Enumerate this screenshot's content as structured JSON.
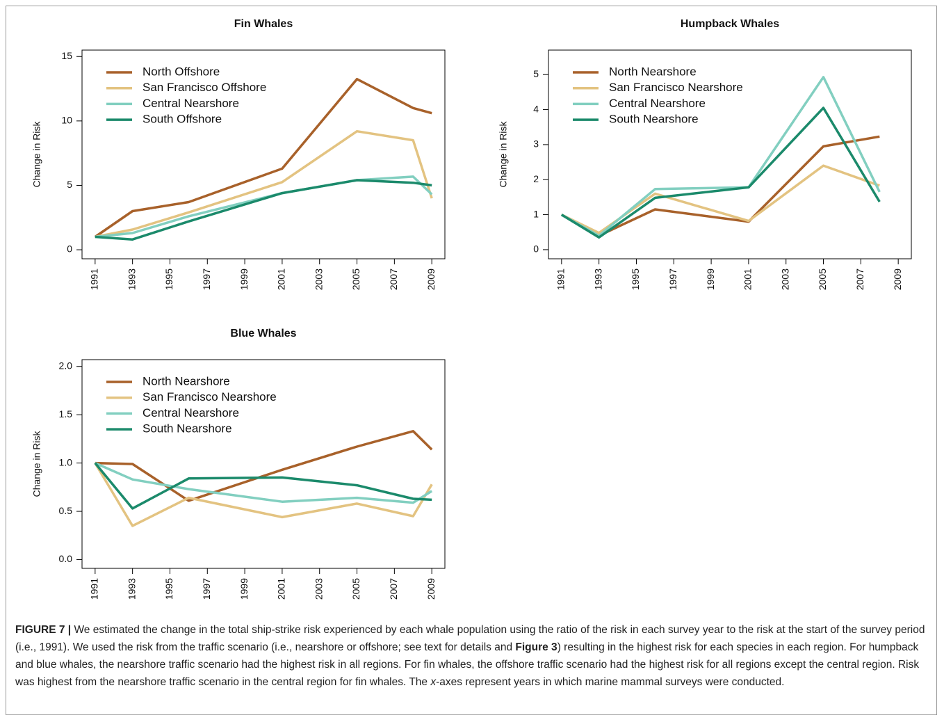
{
  "chart_data": [
    {
      "type": "line",
      "title": "Fin Whales",
      "y_label": "Change in Risk",
      "x": [
        1991,
        1993,
        1996,
        2001,
        2005,
        2008,
        2009
      ],
      "xlim": [
        1990.3,
        2009.7
      ],
      "xticks": [
        1991,
        1993,
        1995,
        1997,
        1999,
        2001,
        2003,
        2005,
        2007,
        2009
      ],
      "ylim": [
        -0.7,
        15.5
      ],
      "yticks": [
        0,
        5,
        10,
        15
      ],
      "legend": "upper left",
      "series": [
        {
          "name": "North Offshore",
          "color": "#a8612a",
          "values": [
            1,
            3.0,
            3.7,
            6.3,
            13.25,
            11.0,
            10.6
          ]
        },
        {
          "name": "San Francisco Offshore",
          "color": "#e3c381",
          "values": [
            1,
            1.57,
            2.9,
            5.25,
            9.2,
            8.5,
            4.0
          ]
        },
        {
          "name": "Central Nearshore",
          "color": "#82cfc0",
          "values": [
            1,
            1.3,
            2.6,
            4.4,
            5.4,
            5.68,
            4.3
          ]
        },
        {
          "name": "South Offshore",
          "color": "#1b8a6b",
          "values": [
            1,
            0.8,
            2.2,
            4.4,
            5.4,
            5.2,
            5.0
          ]
        }
      ]
    },
    {
      "type": "line",
      "title": "Humpback Whales",
      "y_label": "Change in Risk",
      "x": [
        1991,
        1993,
        1996,
        2001,
        2005,
        2008
      ],
      "xlim": [
        1990.3,
        2009.7
      ],
      "xticks": [
        1991,
        1993,
        1995,
        1997,
        1999,
        2001,
        2003,
        2005,
        2007,
        2009
      ],
      "ylim": [
        -0.26,
        5.7
      ],
      "yticks": [
        0,
        1,
        2,
        3,
        4,
        5
      ],
      "legend": "upper left",
      "series": [
        {
          "name": "North Nearshore",
          "color": "#a8612a",
          "values": [
            1,
            0.4,
            1.15,
            0.8,
            2.95,
            3.23
          ]
        },
        {
          "name": "San Francisco Nearshore",
          "color": "#e3c381",
          "values": [
            1,
            0.48,
            1.6,
            0.82,
            2.4,
            1.83
          ]
        },
        {
          "name": "Central Nearshore",
          "color": "#82cfc0",
          "values": [
            1,
            0.4,
            1.73,
            1.78,
            4.93,
            1.65
          ]
        },
        {
          "name": "South Nearshore",
          "color": "#1b8a6b",
          "values": [
            1,
            0.35,
            1.48,
            1.78,
            4.05,
            1.37
          ]
        }
      ]
    },
    {
      "type": "line",
      "title": "Blue Whales",
      "y_label": "Change in Risk",
      "x": [
        1991,
        1993,
        1996,
        2001,
        2005,
        2008,
        2009
      ],
      "xlim": [
        1990.3,
        2009.7
      ],
      "xticks": [
        1991,
        1993,
        1995,
        1997,
        1999,
        2001,
        2003,
        2005,
        2007,
        2009
      ],
      "ylim": [
        -0.09,
        2.07
      ],
      "yticks": [
        {
          "value": 0,
          "label": "0.0"
        },
        {
          "value": 0.5,
          "label": "0.5"
        },
        {
          "value": 1,
          "label": "1.0"
        },
        {
          "value": 1.5,
          "label": "1.5"
        },
        {
          "value": 2,
          "label": "2.0"
        }
      ],
      "legend": "upper left",
      "series": [
        {
          "name": "North Nearshore",
          "color": "#a8612a",
          "values": [
            1,
            0.99,
            0.61,
            0.93,
            1.17,
            1.33,
            1.14
          ]
        },
        {
          "name": "San Francisco Nearshore",
          "color": "#e3c381",
          "values": [
            1,
            0.35,
            0.64,
            0.44,
            0.58,
            0.45,
            0.78
          ]
        },
        {
          "name": "Central Nearshore",
          "color": "#82cfc0",
          "values": [
            1,
            0.83,
            0.73,
            0.6,
            0.64,
            0.59,
            0.71
          ]
        },
        {
          "name": "South Nearshore",
          "color": "#1b8a6b",
          "values": [
            1,
            0.53,
            0.84,
            0.85,
            0.77,
            0.63,
            0.62
          ]
        }
      ]
    }
  ],
  "caption": {
    "label": "FIGURE 7 |",
    "text_1": " We estimated the change in the total ship-strike risk experienced by each whale population using the ratio of the risk in each survey year to the risk at the start of the survey period (i.e., 1991). We used the risk from the traffic scenario (i.e., nearshore or offshore; see text for details and ",
    "ref": "Figure 3",
    "text_2": ") resulting in the highest risk for each species in each region. For humpback and blue whales, the nearshore traffic scenario had the highest risk in all regions. For fin whales, the offshore traffic scenario had the highest risk for all regions except the central region. Risk was highest from the nearshore traffic scenario in the central region for fin whales. The ",
    "axis": "x",
    "text_3": "-axes represent years in which marine mammal surveys were conducted."
  }
}
